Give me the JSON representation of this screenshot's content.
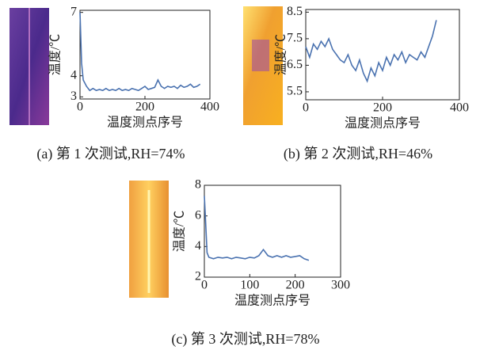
{
  "chart_data": [
    {
      "type": "line",
      "caption": "(a) 第 1 次测试,RH=74%",
      "x_label": "温度测点序号",
      "y_label": "温度/℃",
      "color": "#4a72b0",
      "x": [
        0,
        5,
        10,
        20,
        30,
        40,
        50,
        60,
        70,
        80,
        90,
        100,
        110,
        120,
        130,
        140,
        150,
        160,
        170,
        180,
        190,
        200,
        210,
        220,
        230,
        240,
        250,
        260,
        270,
        280,
        290,
        300,
        310,
        320,
        330,
        340,
        350,
        360,
        370
      ],
      "values": [
        7.0,
        4.6,
        3.8,
        3.5,
        3.3,
        3.4,
        3.3,
        3.35,
        3.3,
        3.4,
        3.3,
        3.35,
        3.3,
        3.4,
        3.3,
        3.35,
        3.3,
        3.4,
        3.35,
        3.3,
        3.4,
        3.5,
        3.35,
        3.4,
        3.45,
        3.8,
        3.5,
        3.4,
        3.5,
        3.45,
        3.5,
        3.4,
        3.55,
        3.45,
        3.5,
        3.6,
        3.45,
        3.5,
        3.6
      ],
      "xlim": [
        0,
        400
      ],
      "xticks": [
        0,
        200,
        400
      ],
      "ylim": [
        2.9,
        7.1
      ],
      "yticks": [
        3,
        4,
        7
      ]
    },
    {
      "type": "line",
      "caption": "(b) 第 2 次测试,RH=46%",
      "x_label": "温度测点序号",
      "y_label": "温度/℃",
      "color": "#4a72b0",
      "x": [
        0,
        10,
        20,
        30,
        40,
        50,
        60,
        70,
        80,
        90,
        100,
        110,
        120,
        130,
        140,
        150,
        160,
        170,
        180,
        190,
        200,
        210,
        220,
        230,
        240,
        250,
        260,
        270,
        280,
        290,
        300,
        310,
        320,
        330,
        340
      ],
      "values": [
        7.2,
        6.8,
        7.3,
        7.1,
        7.4,
        7.2,
        7.5,
        7.1,
        6.9,
        6.7,
        6.6,
        6.9,
        6.5,
        6.3,
        6.7,
        6.2,
        5.9,
        6.4,
        6.1,
        6.6,
        6.3,
        6.8,
        6.5,
        6.9,
        6.7,
        7.0,
        6.6,
        6.9,
        6.8,
        6.7,
        7.0,
        6.8,
        7.2,
        7.6,
        8.2
      ],
      "xlim": [
        0,
        400
      ],
      "xticks": [
        0,
        200,
        400
      ],
      "ylim": [
        5.2,
        8.6
      ],
      "yticks": [
        5.5,
        6.5,
        7.5,
        8.5
      ]
    },
    {
      "type": "line",
      "caption": "(c) 第 3 次测试,RH=78%",
      "x_label": "温度测点序号",
      "y_label": "温度/℃",
      "color": "#4a72b0",
      "x": [
        0,
        3,
        6,
        10,
        20,
        30,
        40,
        50,
        60,
        70,
        80,
        90,
        100,
        110,
        120,
        130,
        140,
        150,
        160,
        170,
        180,
        190,
        200,
        210,
        220,
        230
      ],
      "values": [
        7.3,
        5.5,
        3.6,
        3.3,
        3.2,
        3.3,
        3.25,
        3.3,
        3.2,
        3.3,
        3.25,
        3.2,
        3.3,
        3.25,
        3.4,
        3.8,
        3.4,
        3.3,
        3.4,
        3.3,
        3.4,
        3.3,
        3.35,
        3.4,
        3.2,
        3.1
      ],
      "xlim": [
        0,
        300
      ],
      "xticks": [
        0,
        100,
        200,
        300
      ],
      "ylim": [
        2,
        8
      ],
      "yticks": [
        2,
        4,
        6,
        8
      ]
    }
  ]
}
